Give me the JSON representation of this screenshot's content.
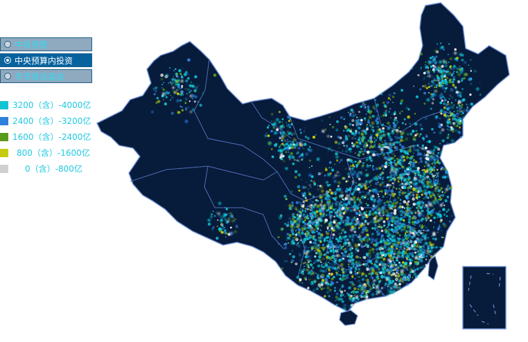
{
  "radio_options": [
    {
      "label": "中投预警",
      "selected": false
    },
    {
      "label": "中央预算内投资",
      "selected": true
    },
    {
      "label": "专项建设基金",
      "selected": false
    }
  ],
  "legend": [
    {
      "label": "3200（含）-4000亿",
      "color": "#11c4d3"
    },
    {
      "label": "2400（含）-3200亿",
      "color": "#2f7fdc"
    },
    {
      "label": "1600（含）-2400亿",
      "color": "#5a9a1a"
    },
    {
      "label": "800（含）-1600亿",
      "color": "#c6cb0d"
    },
    {
      "label": "0（含）-800亿",
      "color": "#d0d0d0"
    }
  ],
  "map": {
    "land_color": "#071b3a",
    "border_color": "#6d8fd6"
  }
}
